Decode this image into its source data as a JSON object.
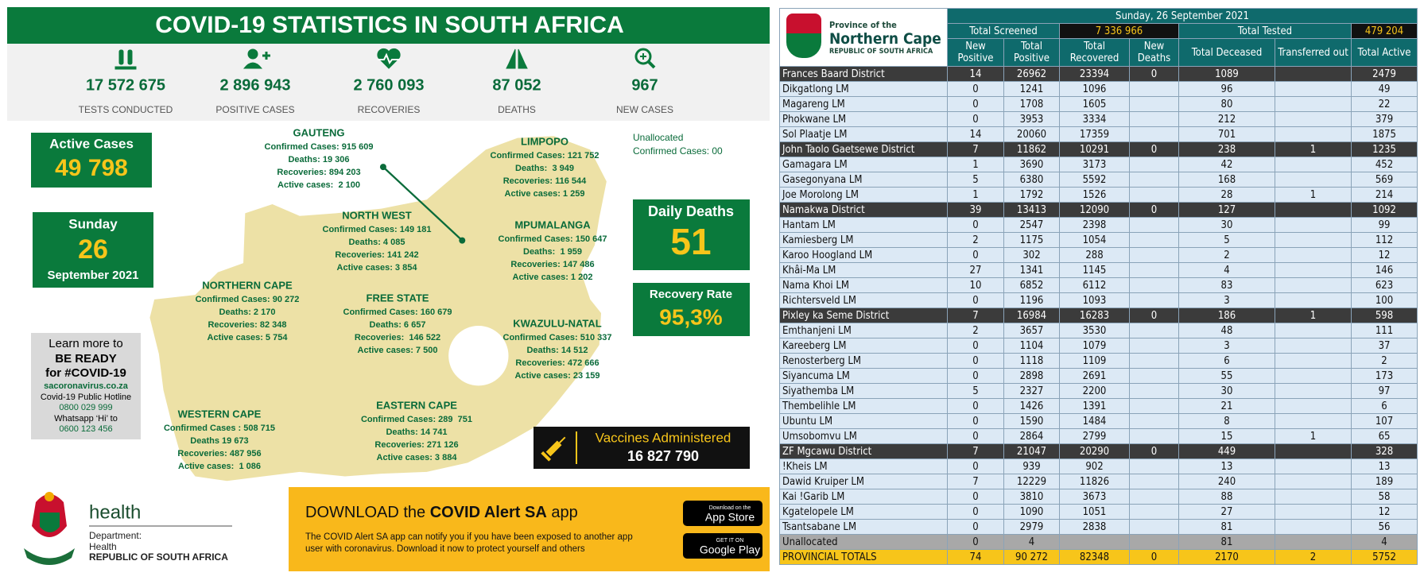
{
  "infographic": {
    "title": "COVID-19 STATISTICS IN SOUTH AFRICA",
    "stats": [
      {
        "value": "17 572 675",
        "label": "TESTS CONDUCTED"
      },
      {
        "value": "2 896 943",
        "label": "POSITIVE CASES"
      },
      {
        "value": "2 760 093",
        "label": "RECOVERIES"
      },
      {
        "value": "87 052",
        "label": "DEATHS"
      },
      {
        "value": "967",
        "label": "NEW CASES"
      }
    ],
    "active_cases": {
      "label": "Active Cases",
      "value": "49 798"
    },
    "date": {
      "weekday": "Sunday",
      "day": "26",
      "month_year": "September 2021"
    },
    "provinces": [
      {
        "name": "GAUTENG",
        "lines": [
          "Confirmed Cases: 915 609",
          "Deaths: 19 306",
          "Recoveries: 894 203",
          "Active cases:  2 100"
        ]
      },
      {
        "name": "LIMPOPO",
        "lines": [
          "Confirmed Cases: 121 752",
          "Deaths:  3 949",
          "Recoveries: 116 544",
          "Active cases: 1 259"
        ]
      },
      {
        "name": "NORTH WEST",
        "lines": [
          "Confirmed Cases: 149 181",
          "Deaths: 4 085",
          "Recoveries: 141 242",
          "Active cases: 3 854"
        ]
      },
      {
        "name": "MPUMALANGA",
        "lines": [
          "Confirmed Cases: 150 647",
          "Deaths:  1 959",
          "Recoveries: 147 486",
          "Active cases: 1 202"
        ]
      },
      {
        "name": "NORTHERN CAPE",
        "lines": [
          "Confirmed Cases: 90 272",
          "Deaths: 2 170",
          "Recoveries: 82 348",
          "Active cases: 5 754"
        ]
      },
      {
        "name": "FREE STATE",
        "lines": [
          "Confirmed Cases: 160 679",
          "Deaths: 6 657",
          "Recoveries:  146 522",
          "Active cases: 7 500"
        ]
      },
      {
        "name": "KWAZULU-NATAL",
        "lines": [
          "Confirmed Cases: 510 337",
          "Deaths: 14 512",
          "Recoveries: 472 666",
          "Active cases: 23 159"
        ]
      },
      {
        "name": "WESTERN CAPE",
        "lines": [
          "Confirmed Cases : 508 715",
          "Deaths 19 673",
          "Recoveries: 487 956",
          "Active cases:  1 086"
        ]
      },
      {
        "name": "EASTERN CAPE",
        "lines": [
          "Confirmed Cases: 289  751",
          "Deaths: 14 741",
          "Recoveries: 271 126",
          "Active cases: 3 884"
        ]
      }
    ],
    "unallocated": [
      "Unallocated",
      "Confirmed Cases: 00"
    ],
    "daily_deaths": {
      "label": "Daily Deaths",
      "value": "51"
    },
    "recovery_rate": {
      "label": "Recovery Rate",
      "value": "95,3%"
    },
    "learn_more": [
      "Learn more to",
      "BE READY",
      "for #COVID-19",
      "sacoronavirus.co.za",
      "Covid-19 Public Hotline",
      "0800 029 999",
      "Whatsapp ‘Hi’ to",
      "0600 123 456"
    ],
    "vaccines": {
      "label": "Vaccines Administered",
      "value": "16 827 790"
    },
    "department": {
      "word": "health",
      "lines": [
        "Department:",
        "Health",
        "REPUBLIC OF SOUTH AFRICA"
      ]
    },
    "app_banner": {
      "prefix": "DOWNLOAD the ",
      "app_name": "COVID Alert SA",
      "suffix": " app",
      "description": [
        "The COVID Alert SA app can notify you if you have been exposed to another app",
        "user with coronavirus. Download it now to protect yourself and others"
      ],
      "app_store": [
        "Download on the",
        "App Store"
      ],
      "google_play": [
        "GET IT ON",
        "Google Play"
      ]
    }
  },
  "table": {
    "logo": [
      "Province of the",
      "Northern Cape",
      "REPUBLIC OF SOUTH AFRICA"
    ],
    "date": "Sunday, 26 September 2021",
    "total_screened": {
      "label": "Total Screened",
      "value": "7 336 966"
    },
    "total_tested": {
      "label": "Total Tested",
      "value": "479 204"
    },
    "columns": [
      "New Positive",
      "Total Positive",
      "Total Recovered",
      "New Deaths",
      "Total Deceased",
      "Transferred out",
      "Total Active"
    ],
    "districts": [
      {
        "row": [
          "Frances Baard District",
          14,
          26962,
          23394,
          0,
          1089,
          null,
          2479
        ],
        "municipalities": [
          [
            "Dikgatlong LM",
            0,
            1241,
            1096,
            null,
            96,
            null,
            49
          ],
          [
            "Magareng LM",
            0,
            1708,
            1605,
            null,
            80,
            null,
            22
          ],
          [
            "Phokwane LM",
            0,
            3953,
            3334,
            null,
            212,
            null,
            379
          ],
          [
            "Sol Plaatje LM",
            14,
            20060,
            17359,
            null,
            701,
            null,
            1875
          ]
        ]
      },
      {
        "row": [
          "John Taolo Gaetsewe District",
          7,
          11862,
          10291,
          0,
          238,
          1,
          1235
        ],
        "municipalities": [
          [
            "Gamagara LM",
            1,
            3690,
            3173,
            null,
            42,
            null,
            452
          ],
          [
            "Gasegonyana LM",
            5,
            6380,
            5592,
            null,
            168,
            null,
            569
          ],
          [
            "Joe Morolong LM",
            1,
            1792,
            1526,
            null,
            28,
            1,
            214
          ]
        ]
      },
      {
        "row": [
          "Namakwa District",
          39,
          13413,
          12090,
          0,
          127,
          null,
          1092
        ],
        "municipalities": [
          [
            "Hantam LM",
            0,
            2547,
            2398,
            null,
            30,
            null,
            99
          ],
          [
            "Kamiesberg LM",
            2,
            1175,
            1054,
            null,
            5,
            null,
            112
          ],
          [
            "Karoo Hoogland LM",
            0,
            302,
            288,
            null,
            2,
            null,
            12
          ],
          [
            "Khâi-Ma LM",
            27,
            1341,
            1145,
            null,
            4,
            null,
            146
          ],
          [
            "Nama Khoi LM",
            10,
            6852,
            6112,
            null,
            83,
            null,
            623
          ],
          [
            "Richtersveld LM",
            0,
            1196,
            1093,
            null,
            3,
            null,
            100
          ]
        ]
      },
      {
        "row": [
          "Pixley ka Seme District",
          7,
          16984,
          16283,
          0,
          186,
          1,
          598
        ],
        "municipalities": [
          [
            "Emthanjeni LM",
            2,
            3657,
            3530,
            null,
            48,
            null,
            111
          ],
          [
            "Kareeberg LM",
            0,
            1104,
            1079,
            null,
            3,
            null,
            37
          ],
          [
            "Renosterberg LM",
            0,
            1118,
            1109,
            null,
            6,
            null,
            2
          ],
          [
            "Siyancuma LM",
            0,
            2898,
            2691,
            null,
            55,
            null,
            173
          ],
          [
            "Siyathemba LM",
            5,
            2327,
            2200,
            null,
            30,
            null,
            97
          ],
          [
            "Thembelihle LM",
            0,
            1426,
            1391,
            null,
            21,
            null,
            6
          ],
          [
            "Ubuntu LM",
            0,
            1590,
            1484,
            null,
            8,
            null,
            107
          ],
          [
            "Umsobomvu LM",
            0,
            2864,
            2799,
            null,
            15,
            1,
            65
          ]
        ]
      },
      {
        "row": [
          "ZF Mgcawu District",
          7,
          21047,
          20290,
          0,
          449,
          null,
          328
        ],
        "municipalities": [
          [
            "!Kheis LM",
            0,
            939,
            902,
            null,
            13,
            null,
            13
          ],
          [
            "Dawid Kruiper LM",
            7,
            12229,
            11826,
            null,
            240,
            null,
            189
          ],
          [
            "Kai !Garib LM",
            0,
            3810,
            3673,
            null,
            88,
            null,
            58
          ],
          [
            "Kgatelopele LM",
            0,
            1090,
            1051,
            null,
            27,
            null,
            12
          ],
          [
            "Tsantsabane LM",
            0,
            2979,
            2838,
            null,
            81,
            null,
            56
          ]
        ]
      }
    ],
    "unallocated": [
      "Unallocated",
      0,
      4,
      null,
      null,
      81,
      null,
      4
    ],
    "totals": [
      "PROVINCIAL TOTALS",
      74,
      "90 272",
      82348,
      0,
      2170,
      2,
      5752
    ]
  }
}
